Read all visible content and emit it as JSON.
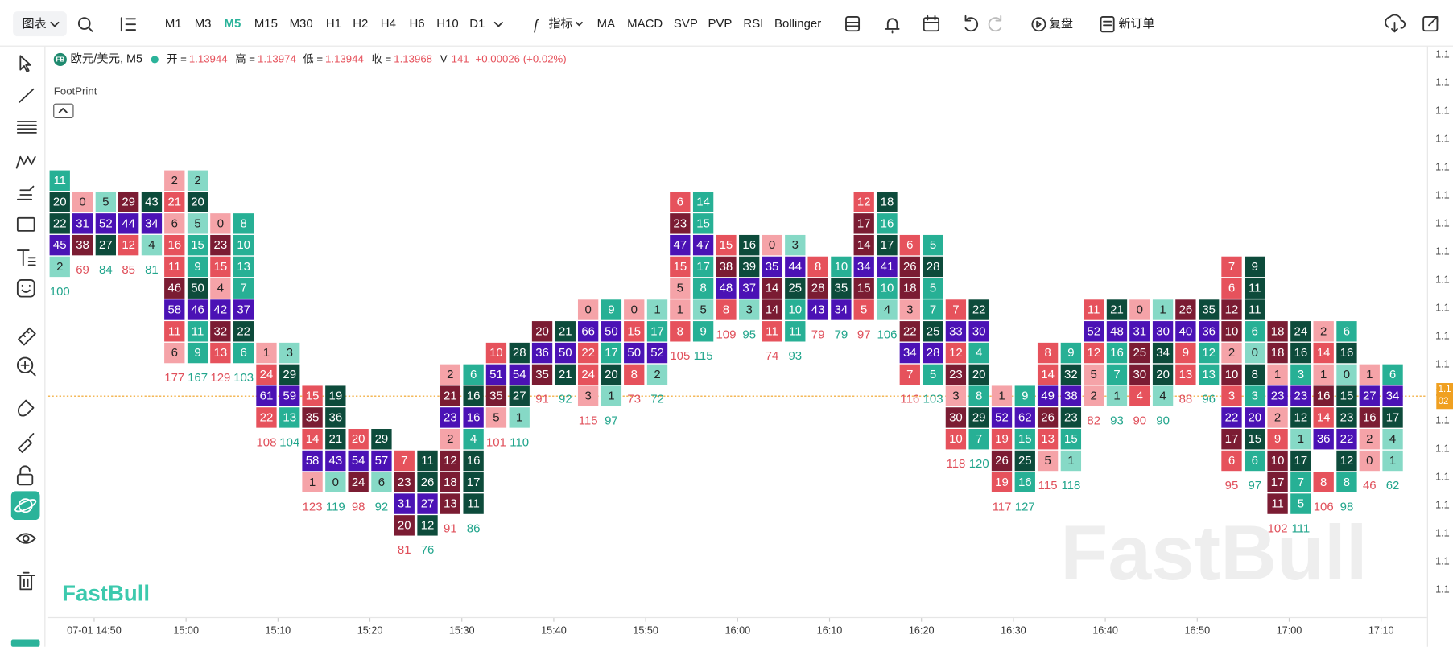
{
  "toolbar": {
    "chart_menu": "图表",
    "timeframes": [
      "M1",
      "M3",
      "M5",
      "M15",
      "M30",
      "H1",
      "H2",
      "H4",
      "H6",
      "H10",
      "D1"
    ],
    "active_timeframe": "M5",
    "indicators": "指标",
    "studies": [
      "MA",
      "MACD",
      "SVP",
      "PVP",
      "RSI",
      "Bollinger"
    ],
    "replay": "复盘",
    "new_order": "新订单"
  },
  "header": {
    "symbol": "欧元/美元, M5",
    "open_label": "开 =",
    "open": 1.13944,
    "high_label": "高 =",
    "high": 1.13974,
    "low_label": "低 =",
    "low": 1.13944,
    "close_label": "收 =",
    "close": 1.13968,
    "volume_label": "V",
    "volume": 141,
    "change": "+0.00026 (+0.02%)"
  },
  "indicator_name": "FootPrint",
  "logo": "FastBull",
  "watermark": "FastBull",
  "price_axis_labels": [
    "1.1",
    "1.1",
    "1.1",
    "1.1",
    "1.1",
    "1.1",
    "1.1",
    "1.1",
    "1.1",
    "1.1",
    "1.1",
    "1.1",
    "1.1",
    "1.1",
    "1.1",
    "1.1",
    "1.1",
    "1.1",
    "1.1",
    "1.1"
  ],
  "price_tag": [
    "1.1",
    "02"
  ],
  "chart_data": {
    "type": "footprint",
    "row_size": 2e-05,
    "xlim": [
      0,
      30
    ],
    "ylim": [
      1.13948,
      1.14
    ],
    "xticks": [
      {
        "value": 1,
        "label": "07-01 14:50"
      },
      {
        "value": 3,
        "label": "15:00"
      },
      {
        "value": 5,
        "label": "15:10"
      },
      {
        "value": 7,
        "label": "15:20"
      },
      {
        "value": 9,
        "label": "15:30"
      },
      {
        "value": 11,
        "label": "15:40"
      },
      {
        "value": 13,
        "label": "15:50"
      },
      {
        "value": 15,
        "label": "16:00"
      },
      {
        "value": 17,
        "label": "16:10"
      },
      {
        "value": 19,
        "label": "16:20"
      },
      {
        "value": 21,
        "label": "16:30"
      },
      {
        "value": 23,
        "label": "16:40"
      },
      {
        "value": 25,
        "label": "16:50"
      },
      {
        "value": 27,
        "label": "17:00"
      },
      {
        "value": 29,
        "label": "17:10"
      }
    ],
    "colors": {
      "poc": "#4b12b5",
      "sell": [
        "#f5a3a8",
        "#e6525c",
        "#7b1c33"
      ],
      "buy": [
        "#86d9c6",
        "#27b095",
        "#0d4b3b"
      ],
      "sell_text": "#e0505b",
      "buy_text": "#21a58c",
      "price_line": "#f0a020"
    },
    "candles": [
      {
        "high": 1.13988,
        "buy": [
          11,
          20,
          22,
          45,
          2
        ],
        "buy_total": 100
      },
      {
        "high": 1.13986,
        "sell": [
          0,
          31,
          38
        ],
        "buy": [
          5,
          52,
          27
        ],
        "sell_total": 69,
        "buy_total": 84
      },
      {
        "high": 1.13986,
        "sell": [
          29,
          44,
          12
        ],
        "buy": [
          43,
          34,
          4
        ],
        "sell_total": 85,
        "buy_total": 81
      },
      {
        "high": 1.13988,
        "sell": [
          2,
          21,
          6,
          16,
          11,
          46,
          58,
          11,
          6
        ],
        "buy": [
          2,
          20,
          5,
          15,
          9,
          50,
          46,
          11,
          9
        ],
        "sell_total": 177,
        "buy_total": 167
      },
      {
        "high": 1.13984,
        "sell": [
          0,
          23,
          15,
          4,
          42,
          32,
          13
        ],
        "buy": [
          8,
          10,
          13,
          7,
          37,
          22,
          6
        ],
        "sell_total": 129,
        "buy_total": 103
      },
      {
        "high": 1.13972,
        "sell": [
          1,
          24,
          61,
          22
        ],
        "buy": [
          3,
          29,
          59,
          13
        ],
        "sell_total": 108,
        "buy_total": 104
      },
      {
        "high": 1.13968,
        "sell": [
          15,
          35,
          14,
          58,
          1
        ],
        "buy": [
          19,
          36,
          21,
          43,
          0
        ],
        "sell_total": 123,
        "buy_total": 119
      },
      {
        "high": 1.13964,
        "sell": [
          20,
          54,
          24
        ],
        "buy": [
          29,
          57,
          6
        ],
        "sell_total": 98,
        "buy_total": 92
      },
      {
        "high": 1.13962,
        "sell": [
          7,
          23,
          31,
          20
        ],
        "buy": [
          11,
          26,
          27,
          12
        ],
        "sell_total": 81,
        "buy_total": 76
      },
      {
        "high": 1.1397,
        "sell": [
          2,
          21,
          23,
          2,
          12,
          18,
          13
        ],
        "buy": [
          6,
          16,
          16,
          4,
          16,
          17,
          11
        ],
        "sell_total": 91,
        "buy_total": 86
      },
      {
        "high": 1.13972,
        "sell": [
          10,
          51,
          35,
          5
        ],
        "buy": [
          28,
          54,
          27,
          1
        ],
        "sell_total": 101,
        "buy_total": 110
      },
      {
        "high": 1.13974,
        "sell": [
          20,
          36,
          35
        ],
        "buy": [
          21,
          50,
          21
        ],
        "sell_total": 91,
        "buy_total": 92
      },
      {
        "high": 1.13976,
        "sell": [
          0,
          66,
          22,
          24,
          3
        ],
        "buy": [
          9,
          50,
          17,
          20,
          1
        ],
        "sell_total": 115,
        "buy_total": 97
      },
      {
        "high": 1.13976,
        "sell": [
          0,
          15,
          50,
          8
        ],
        "buy": [
          1,
          17,
          52,
          2
        ],
        "sell_total": 73,
        "buy_total": 72
      },
      {
        "high": 1.13986,
        "sell": [
          6,
          23,
          47,
          15,
          5,
          1,
          8
        ],
        "buy": [
          14,
          15,
          47,
          17,
          8,
          5,
          9
        ],
        "sell_total": 105,
        "buy_total": 115
      },
      {
        "high": 1.13982,
        "sell": [
          15,
          38,
          48,
          8
        ],
        "buy": [
          16,
          39,
          37,
          3
        ],
        "sell_total": 109,
        "buy_total": 95
      },
      {
        "high": 1.13982,
        "sell": [
          0,
          35,
          14,
          14,
          11
        ],
        "buy": [
          3,
          44,
          25,
          10,
          11
        ],
        "sell_total": 74,
        "buy_total": 93
      },
      {
        "high": 1.1398,
        "sell": [
          8,
          28,
          43
        ],
        "buy": [
          10,
          35,
          34
        ],
        "sell_total": 79,
        "buy_total": 79
      },
      {
        "high": 1.13986,
        "sell": [
          12,
          17,
          14,
          34,
          15,
          5
        ],
        "buy": [
          18,
          16,
          17,
          41,
          10,
          4
        ],
        "sell_total": 97,
        "buy_total": 106
      },
      {
        "high": 1.13982,
        "sell": [
          6,
          26,
          18,
          3,
          22,
          34,
          7
        ],
        "buy": [
          5,
          28,
          5,
          7,
          25,
          28,
          5
        ],
        "sell_total": 116,
        "buy_total": 103
      },
      {
        "high": 1.13976,
        "sell": [
          7,
          33,
          12,
          23,
          3,
          30,
          10
        ],
        "buy": [
          22,
          30,
          4,
          20,
          8,
          29,
          7
        ],
        "sell_total": 118,
        "buy_total": 120
      },
      {
        "high": 1.13968,
        "sell": [
          1,
          52,
          19,
          26,
          19
        ],
        "buy": [
          9,
          62,
          15,
          25,
          16
        ],
        "sell_total": 117,
        "buy_total": 127
      },
      {
        "high": 1.13972,
        "sell": [
          8,
          14,
          49,
          26,
          13,
          5
        ],
        "buy": [
          9,
          32,
          38,
          23,
          15,
          1
        ],
        "sell_total": 115,
        "buy_total": 118
      },
      {
        "high": 1.13976,
        "sell": [
          11,
          52,
          12,
          5,
          2
        ],
        "buy": [
          21,
          48,
          16,
          7,
          1
        ],
        "sell_total": 82,
        "buy_total": 93
      },
      {
        "high": 1.13976,
        "sell": [
          0,
          31,
          25,
          30,
          4
        ],
        "buy": [
          1,
          30,
          34,
          20,
          4
        ],
        "sell_total": 90,
        "buy_total": 90
      },
      {
        "high": 1.13976,
        "sell": [
          26,
          40,
          9,
          13
        ],
        "buy": [
          35,
          36,
          12,
          13
        ],
        "sell_total": 88,
        "buy_total": 96
      },
      {
        "high": 1.1398,
        "sell": [
          7,
          6,
          12,
          10,
          2,
          10,
          3,
          22,
          17,
          6
        ],
        "buy": [
          9,
          11,
          11,
          6,
          0,
          8,
          3,
          20,
          15,
          6
        ],
        "sell_total": 95,
        "buy_total": 97
      },
      {
        "high": 1.13974,
        "sell": [
          18,
          18,
          1,
          23,
          2,
          9,
          10,
          17,
          11
        ],
        "buy": [
          24,
          16,
          3,
          23,
          12,
          1,
          17,
          7,
          5
        ],
        "sell_total": 102,
        "buy_total": 111
      },
      {
        "high": 1.13974,
        "sell": [
          2,
          14,
          1,
          16,
          14,
          36,
          null,
          8
        ],
        "buy": [
          6,
          16,
          0,
          15,
          23,
          22,
          12,
          8
        ],
        "sell_total": 106,
        "buy_total": 98
      },
      {
        "high": 1.1397,
        "sell": [
          1,
          27,
          16,
          2,
          0
        ],
        "buy": [
          6,
          34,
          17,
          4,
          1
        ],
        "sell_total": 46,
        "buy_total": 62
      }
    ]
  }
}
